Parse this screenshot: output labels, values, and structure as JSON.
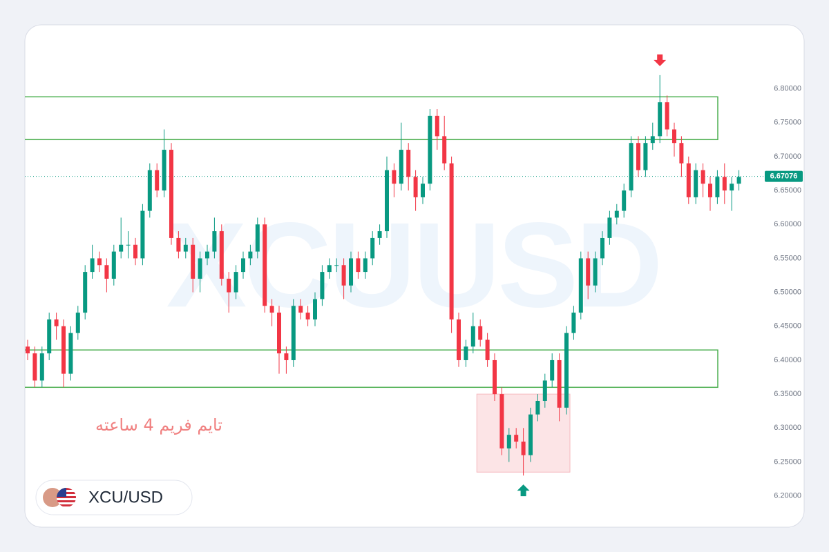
{
  "chart_data": {
    "type": "candlestick",
    "symbol": "XCU/USD",
    "watermark": "XCUUSD",
    "annotation": "تایم فریم 4 ساعته",
    "up_color": "#089981",
    "down_color": "#f23645",
    "zone_color": "#4caf50",
    "highlight_color": "#fbdde0",
    "ylim": [
      6.158,
      6.89
    ],
    "yticks": [
      {
        "value": 6.2,
        "label": "6.20000"
      },
      {
        "value": 6.25,
        "label": "6.25000"
      },
      {
        "value": 6.3,
        "label": "6.30000"
      },
      {
        "value": 6.35,
        "label": "6.35000"
      },
      {
        "value": 6.4,
        "label": "6.40000"
      },
      {
        "value": 6.45,
        "label": "6.45000"
      },
      {
        "value": 6.5,
        "label": "6.50000"
      },
      {
        "value": 6.55,
        "label": "6.55000"
      },
      {
        "value": 6.6,
        "label": "6.60000"
      },
      {
        "value": 6.65,
        "label": "6.65000"
      },
      {
        "value": 6.7,
        "label": "6.70000"
      },
      {
        "value": 6.75,
        "label": "6.75000"
      },
      {
        "value": 6.8,
        "label": "6.80000"
      }
    ],
    "last_price": 6.67076,
    "zones": [
      {
        "low": 6.725,
        "high": 6.788
      },
      {
        "low": 6.36,
        "high": 6.415
      }
    ],
    "highlight": {
      "low": 6.235,
      "high": 6.35,
      "from": 63,
      "to": 75
    },
    "markers": [
      {
        "index": 88,
        "direction": "down"
      },
      {
        "index": 69,
        "direction": "up"
      }
    ],
    "ohlc": {
      "open": [
        6.42,
        6.41,
        6.37,
        6.41,
        6.46,
        6.45,
        6.38,
        6.44,
        6.47,
        6.53,
        6.55,
        6.54,
        6.52,
        6.56,
        6.57,
        6.57,
        6.55,
        6.62,
        6.68,
        6.65,
        6.71,
        6.58,
        6.56,
        6.57,
        6.52,
        6.55,
        6.56,
        6.59,
        6.52,
        6.5,
        6.53,
        6.55,
        6.56,
        6.6,
        6.48,
        6.47,
        6.41,
        6.4,
        6.48,
        6.47,
        6.46,
        6.49,
        6.53,
        6.54,
        6.54,
        6.51,
        6.55,
        6.53,
        6.55,
        6.58,
        6.59,
        6.68,
        6.66,
        6.71,
        6.67,
        6.64,
        6.66,
        6.76,
        6.73,
        6.69,
        6.46,
        6.4,
        6.42,
        6.45,
        6.43,
        6.4,
        6.35,
        6.27,
        6.29,
        6.28,
        6.26,
        6.32,
        6.34,
        6.37,
        6.4,
        6.33,
        6.44,
        6.47,
        6.55,
        6.51,
        6.55,
        6.58,
        6.61,
        6.62,
        6.65,
        6.72,
        6.68,
        6.72,
        6.73,
        6.78,
        6.74,
        6.72,
        6.69,
        6.64,
        6.68,
        6.66,
        6.64,
        6.67,
        6.65,
        6.66
      ],
      "high": [
        6.43,
        6.42,
        6.42,
        6.47,
        6.47,
        6.46,
        6.45,
        6.48,
        6.54,
        6.57,
        6.56,
        6.55,
        6.57,
        6.61,
        6.59,
        6.58,
        6.63,
        6.69,
        6.69,
        6.74,
        6.72,
        6.59,
        6.58,
        6.58,
        6.56,
        6.57,
        6.61,
        6.6,
        6.53,
        6.54,
        6.56,
        6.57,
        6.61,
        6.61,
        6.49,
        6.48,
        6.42,
        6.49,
        6.49,
        6.48,
        6.5,
        6.54,
        6.55,
        6.55,
        6.55,
        6.56,
        6.56,
        6.56,
        6.59,
        6.6,
        6.7,
        6.69,
        6.75,
        6.72,
        6.68,
        6.67,
        6.77,
        6.77,
        6.76,
        6.7,
        6.47,
        6.43,
        6.47,
        6.46,
        6.44,
        6.41,
        6.36,
        6.3,
        6.3,
        6.3,
        6.33,
        6.35,
        6.38,
        6.41,
        6.41,
        6.45,
        6.48,
        6.56,
        6.56,
        6.56,
        6.59,
        6.62,
        6.63,
        6.66,
        6.73,
        6.73,
        6.73,
        6.75,
        6.82,
        6.79,
        6.75,
        6.73,
        6.7,
        6.69,
        6.69,
        6.67,
        6.68,
        6.69,
        6.67,
        6.68
      ],
      "low": [
        6.4,
        6.36,
        6.36,
        6.4,
        6.43,
        6.36,
        6.37,
        6.43,
        6.46,
        6.52,
        6.53,
        6.5,
        6.51,
        6.55,
        6.55,
        6.54,
        6.54,
        6.61,
        6.64,
        6.64,
        6.57,
        6.55,
        6.55,
        6.5,
        6.5,
        6.54,
        6.55,
        6.51,
        6.47,
        6.49,
        6.52,
        6.54,
        6.55,
        6.47,
        6.45,
        6.38,
        6.38,
        6.39,
        6.46,
        6.45,
        6.45,
        6.48,
        6.52,
        6.53,
        6.49,
        6.5,
        6.52,
        6.52,
        6.54,
        6.57,
        6.58,
        6.64,
        6.65,
        6.65,
        6.62,
        6.63,
        6.65,
        6.71,
        6.68,
        6.44,
        6.39,
        6.39,
        6.41,
        6.42,
        6.39,
        6.34,
        6.26,
        6.25,
        6.27,
        6.23,
        6.25,
        6.31,
        6.33,
        6.36,
        6.31,
        6.32,
        6.43,
        6.46,
        6.49,
        6.5,
        6.54,
        6.57,
        6.6,
        6.61,
        6.64,
        6.67,
        6.67,
        6.71,
        6.72,
        6.73,
        6.7,
        6.67,
        6.63,
        6.63,
        6.64,
        6.62,
        6.63,
        6.63,
        6.62,
        6.65
      ],
      "close": [
        6.41,
        6.37,
        6.41,
        6.46,
        6.45,
        6.38,
        6.44,
        6.47,
        6.53,
        6.55,
        6.54,
        6.52,
        6.56,
        6.57,
        6.57,
        6.55,
        6.62,
        6.68,
        6.65,
        6.71,
        6.58,
        6.56,
        6.57,
        6.52,
        6.55,
        6.56,
        6.59,
        6.52,
        6.5,
        6.53,
        6.55,
        6.56,
        6.6,
        6.48,
        6.47,
        6.41,
        6.4,
        6.48,
        6.47,
        6.46,
        6.49,
        6.53,
        6.54,
        6.54,
        6.51,
        6.55,
        6.53,
        6.55,
        6.58,
        6.59,
        6.68,
        6.66,
        6.71,
        6.67,
        6.64,
        6.66,
        6.76,
        6.73,
        6.69,
        6.46,
        6.4,
        6.42,
        6.45,
        6.43,
        6.4,
        6.35,
        6.27,
        6.29,
        6.28,
        6.26,
        6.32,
        6.34,
        6.37,
        6.4,
        6.33,
        6.44,
        6.47,
        6.55,
        6.51,
        6.55,
        6.58,
        6.61,
        6.62,
        6.65,
        6.72,
        6.68,
        6.72,
        6.73,
        6.78,
        6.74,
        6.72,
        6.69,
        6.64,
        6.68,
        6.66,
        6.64,
        6.67,
        6.65,
        6.66,
        6.67
      ]
    }
  }
}
